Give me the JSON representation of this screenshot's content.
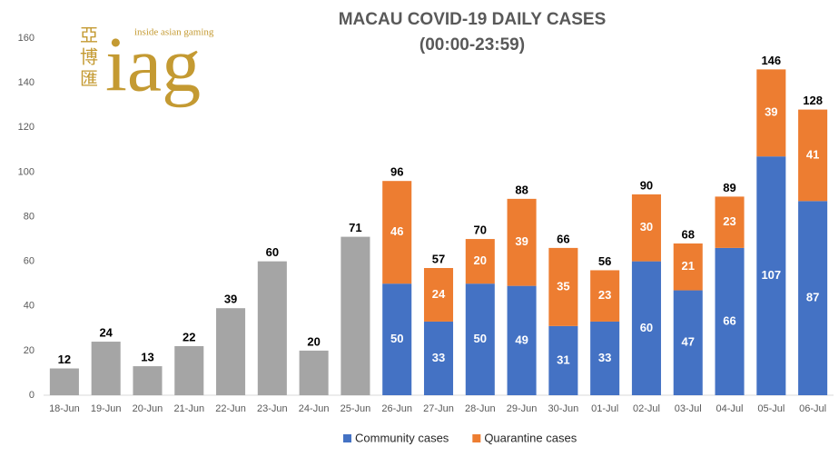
{
  "logo": {
    "chinese": [
      "亞",
      "博",
      "匯"
    ],
    "tagline": "inside asian gaming",
    "text": "iag"
  },
  "chart_data": {
    "type": "stacked_bar",
    "title": "MACAU COVID-19 DAILY CASES",
    "subtitle": "(00:00-23:59)",
    "categories": [
      "18-Jun",
      "19-Jun",
      "20-Jun",
      "21-Jun",
      "22-Jun",
      "23-Jun",
      "24-Jun",
      "25-Jun",
      "26-Jun",
      "27-Jun",
      "28-Jun",
      "29-Jun",
      "30-Jun",
      "01-Jul",
      "02-Jul",
      "03-Jul",
      "04-Jul",
      "05-Jul",
      "06-Jul"
    ],
    "series": [
      {
        "color": "#a5a5a5",
        "show_values": false,
        "values": [
          12,
          24,
          13,
          22,
          39,
          60,
          20,
          71,
          null,
          null,
          null,
          null,
          null,
          null,
          null,
          null,
          null,
          null,
          null
        ]
      },
      {
        "name": "Community cases",
        "color": "#4472c4",
        "show_values": true,
        "values": [
          null,
          null,
          null,
          null,
          null,
          null,
          null,
          null,
          50,
          33,
          50,
          49,
          31,
          33,
          60,
          47,
          66,
          107,
          87
        ]
      },
      {
        "name": "Quarantine cases",
        "color": "#ed7d31",
        "show_values": true,
        "values": [
          null,
          null,
          null,
          null,
          null,
          null,
          null,
          null,
          46,
          24,
          20,
          39,
          35,
          23,
          30,
          21,
          23,
          39,
          41
        ]
      }
    ],
    "totals": [
      12,
      24,
      13,
      22,
      39,
      60,
      20,
      71,
      96,
      57,
      70,
      88,
      66,
      56,
      90,
      68,
      89,
      146,
      128
    ],
    "ylim": [
      0,
      160
    ],
    "yticks": [
      0,
      20,
      40,
      60,
      80,
      100,
      120,
      140,
      160
    ],
    "grid": false,
    "legend": "bottom"
  }
}
